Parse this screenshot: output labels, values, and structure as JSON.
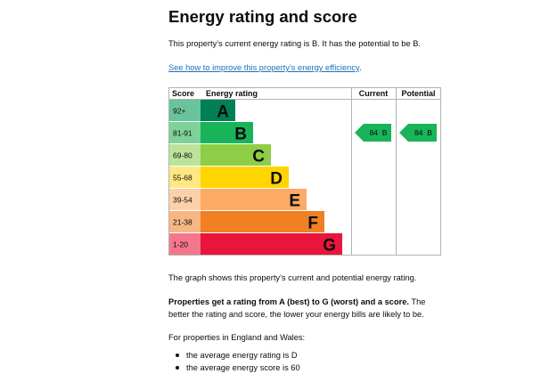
{
  "page": {
    "title": "Energy rating and score",
    "current_text": "This property’s current energy rating is B. It has the potential to be B.",
    "improve_link": "See how to improve this property’s energy efficiency",
    "graph_text": "The graph shows this property’s current and potential energy rating.",
    "rating_bold": "Properties get a rating from A (best) to G (worst) and a score.",
    "rating_rest": " The better the rating and score, the lower your energy bills are likely to be.",
    "region_text": "For properties in England and Wales:",
    "bullets": [
      "the average energy rating is D",
      "the average energy score is 60"
    ]
  },
  "chart_data": {
    "type": "bar",
    "headers": {
      "score": "Score",
      "rating": "Energy rating",
      "current": "Current",
      "potential": "Potential"
    },
    "bands": [
      {
        "range": "92+",
        "letter": "A",
        "color": "#008054",
        "light": "#69c39d",
        "text": "#0b0c0c"
      },
      {
        "range": "81-91",
        "letter": "B",
        "color": "#19b459",
        "light": "#7fd199",
        "text": "#0b0c0c"
      },
      {
        "range": "69-80",
        "letter": "C",
        "color": "#8dce46",
        "light": "#bde39a",
        "text": "#0b0c0c"
      },
      {
        "range": "55-68",
        "letter": "D",
        "color": "#ffd500",
        "light": "#ffe881",
        "text": "#0b0c0c"
      },
      {
        "range": "39-54",
        "letter": "E",
        "color": "#fcaa65",
        "light": "#fdd0a9",
        "text": "#0b0c0c"
      },
      {
        "range": "21-38",
        "letter": "F",
        "color": "#ef8023",
        "light": "#f6b783",
        "text": "#0b0c0c"
      },
      {
        "range": "1-20",
        "letter": "G",
        "color": "#e9153b",
        "light": "#f4768c",
        "text": "#0b0c0c"
      }
    ],
    "current": {
      "score": 84,
      "letter": "B",
      "label": "84  B"
    },
    "potential": {
      "score": 84,
      "letter": "B",
      "label": "84  B"
    }
  }
}
